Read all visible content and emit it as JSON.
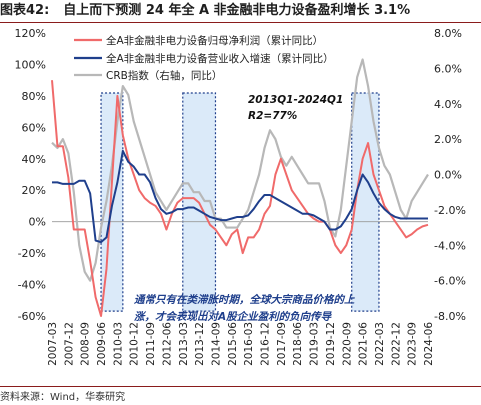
{
  "figure": {
    "number": "图表42:",
    "title": "自上而下预测 24 年全 A 非金融非电力设备盈利增长 3.1%",
    "source": "资料来源：Wind，华泰研究"
  },
  "chart_data": {
    "type": "line",
    "x_labels": [
      "2007-03",
      "2007-12",
      "2008-09",
      "2009-06",
      "2010-03",
      "2010-12",
      "2011-09",
      "2012-06",
      "2013-03",
      "2013-12",
      "2014-09",
      "2015-06",
      "2016-03",
      "2016-12",
      "2017-09",
      "2018-06",
      "2019-03",
      "2019-12",
      "2020-09",
      "2021-06",
      "2022-03",
      "2022-12",
      "2023-09",
      "2024-06"
    ],
    "x_start": "2007-03",
    "x_step_months": 3,
    "y_left": {
      "min": -60,
      "max": 120,
      "ticks": [
        -60,
        -40,
        -20,
        0,
        20,
        40,
        60,
        80,
        100,
        120
      ],
      "unit": "%"
    },
    "y_right": {
      "min": -8,
      "max": 8,
      "ticks": [
        -8,
        -6,
        -4,
        -2,
        0,
        2,
        4,
        6,
        8
      ],
      "unit": "%"
    },
    "series": [
      {
        "name": "全A非金融非电力设备归母净利润（累计同比）",
        "axis": "left",
        "color": "#f06a6a",
        "values": [
          90,
          48,
          48,
          28,
          -5,
          -5,
          -5,
          -25,
          -48,
          -60,
          -30,
          25,
          80,
          55,
          40,
          30,
          20,
          15,
          12,
          10,
          5,
          -5,
          5,
          12,
          15,
          15,
          15,
          12,
          5,
          -2,
          -5,
          -10,
          -15,
          -8,
          -5,
          -20,
          -10,
          -10,
          -5,
          5,
          10,
          30,
          40,
          30,
          20,
          15,
          10,
          5,
          2,
          0,
          0,
          -5,
          -15,
          -20,
          -15,
          -5,
          20,
          40,
          50,
          30,
          20,
          10,
          5,
          0,
          -5,
          -10,
          -8,
          -5,
          -3,
          -2
        ]
      },
      {
        "name": "全A非金融非电力设备营业收入增速（累计同比）",
        "axis": "left",
        "color": "#1f3f8c",
        "values": [
          25,
          25,
          24,
          24,
          24,
          26,
          26,
          18,
          -12,
          -13,
          -10,
          10,
          25,
          45,
          38,
          35,
          30,
          30,
          25,
          15,
          8,
          5,
          6,
          8,
          8,
          9,
          9,
          7,
          5,
          3,
          2,
          1,
          1,
          2,
          3,
          3,
          4,
          8,
          13,
          17,
          17,
          15,
          13,
          11,
          9,
          7,
          5,
          5,
          4,
          2,
          0,
          -5,
          -5,
          -3,
          2,
          8,
          20,
          30,
          25,
          18,
          12,
          8,
          5,
          3,
          2,
          2,
          2,
          2,
          2,
          2
        ]
      },
      {
        "name": "CRB指数（右轴，同比）",
        "axis": "right",
        "color": "#b8b8b8",
        "values": [
          1.8,
          1.5,
          2.0,
          1.2,
          -1.0,
          -4.0,
          -5.5,
          -6.0,
          -5.0,
          -3.0,
          -1.5,
          0.5,
          3.0,
          5.0,
          4.5,
          3.0,
          2.0,
          1.0,
          0.0,
          -1.0,
          -1.5,
          -2.0,
          -1.5,
          -1.0,
          -0.5,
          -0.5,
          -1.0,
          -1.0,
          -1.5,
          -1.5,
          -2.5,
          -2.5,
          -3.0,
          -3.0,
          -3.0,
          -2.5,
          -2.0,
          -1.0,
          0.0,
          1.5,
          2.5,
          2.0,
          1.0,
          0.5,
          1.0,
          0.5,
          0.0,
          -0.5,
          -0.5,
          -0.5,
          -1.5,
          -3.0,
          -3.5,
          -2.0,
          0.5,
          3.0,
          5.5,
          6.5,
          5.0,
          3.0,
          1.5,
          0.5,
          0.0,
          -1.0,
          -2.0,
          -2.5,
          -1.5,
          -1.0,
          -0.5,
          0.0
        ]
      }
    ],
    "shaded_periods": [
      {
        "from_index": 9,
        "to_index": 13
      },
      {
        "from_index": 24,
        "to_index": 30
      },
      {
        "from_index": 55,
        "to_index": 60
      }
    ],
    "annotations": {
      "regression_period": "2013Q1-2024Q1",
      "r_squared": "R2=77%",
      "note": "通常只有在类滞胀时期，全球大宗商品价格的上涨，才会表现出对A股企业盈利的负向传导"
    }
  }
}
